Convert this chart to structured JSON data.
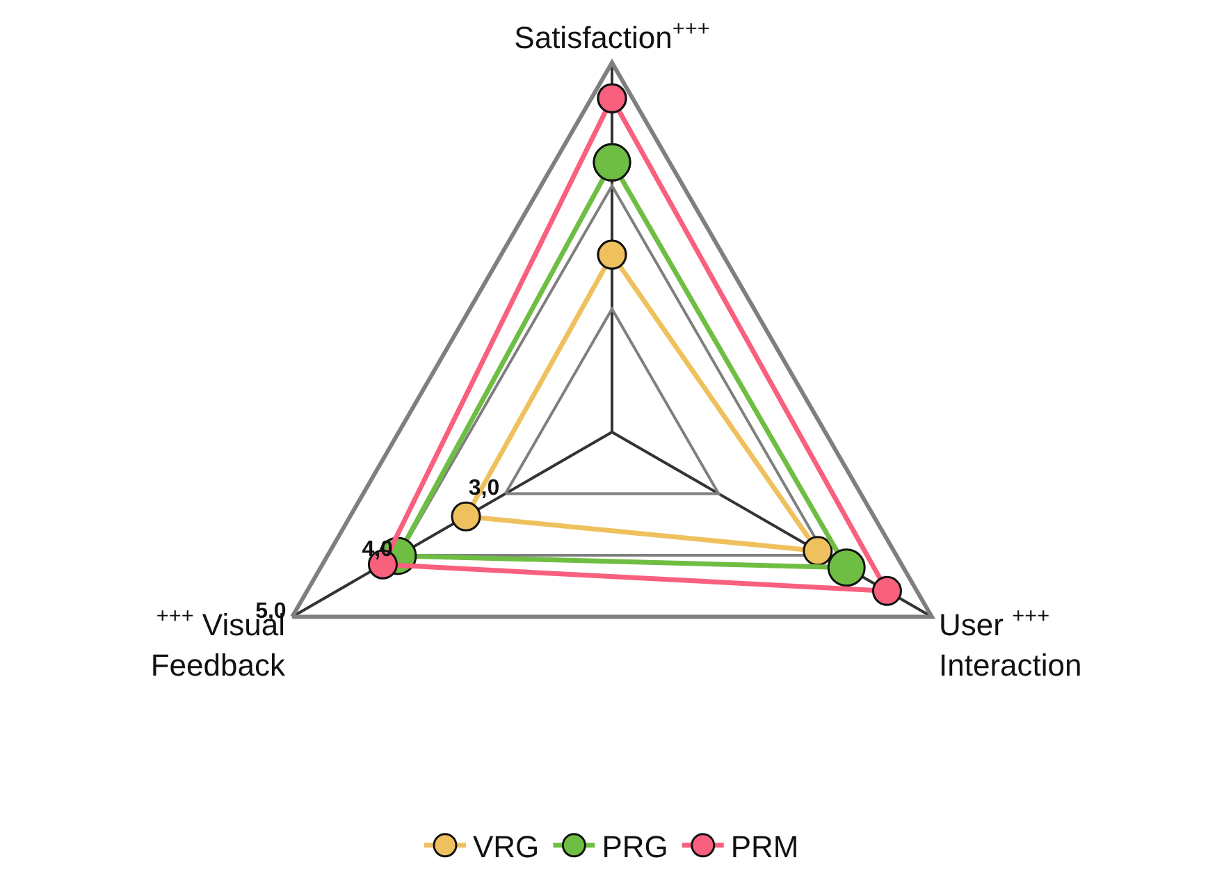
{
  "chart_data": {
    "type": "radar",
    "categories": [
      "Satisfaction$^{+++}$",
      "User $^{+++}$\nInteraction",
      "$^{+++}$ Visual\nFeedback"
    ],
    "series": [
      {
        "name": "VRG",
        "color": "#efc15e",
        "values": [
          3.44,
          3.93,
          3.37
        ]
      },
      {
        "name": "PRG",
        "color": "#6fbe44",
        "values": [
          4.19,
          4.2,
          4.01
        ]
      },
      {
        "name": "PRM",
        "color": "#f8607e",
        "values": [
          4.71,
          4.58,
          4.15
        ]
      }
    ],
    "ylim": [
      2,
      5
    ],
    "yticks": [
      {
        "value": 3,
        "label": "3,0"
      },
      {
        "value": 4,
        "label": "4,0"
      },
      {
        "value": 5,
        "label": "5,0"
      }
    ],
    "grid": true,
    "legend": "bottom",
    "marker": "circle",
    "line_style": "solid"
  }
}
